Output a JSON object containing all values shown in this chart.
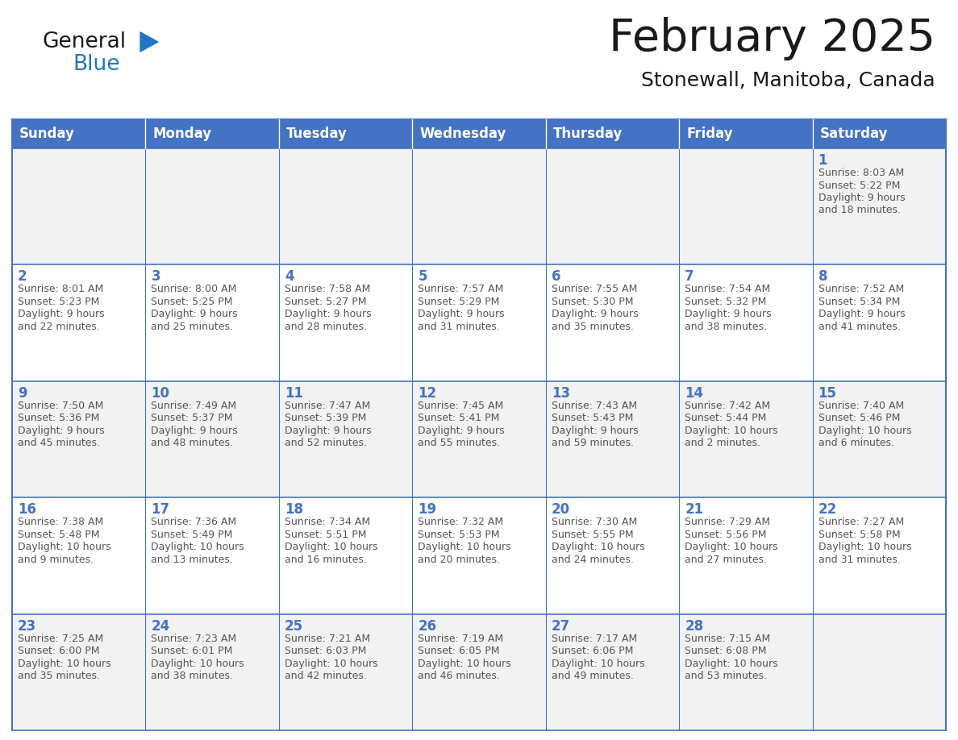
{
  "title": "February 2025",
  "subtitle": "Stonewall, Manitoba, Canada",
  "header_bg": "#4472C4",
  "header_text_color": "#FFFFFF",
  "cell_bg_light": "#F2F2F2",
  "cell_bg_white": "#FFFFFF",
  "border_color": "#4472C4",
  "text_color": "#555555",
  "day_number_color": "#4472C4",
  "day_headers": [
    "Sunday",
    "Monday",
    "Tuesday",
    "Wednesday",
    "Thursday",
    "Friday",
    "Saturday"
  ],
  "weeks": [
    [
      {
        "day": "",
        "info": ""
      },
      {
        "day": "",
        "info": ""
      },
      {
        "day": "",
        "info": ""
      },
      {
        "day": "",
        "info": ""
      },
      {
        "day": "",
        "info": ""
      },
      {
        "day": "",
        "info": ""
      },
      {
        "day": "1",
        "info": "Sunrise: 8:03 AM\nSunset: 5:22 PM\nDaylight: 9 hours\nand 18 minutes."
      }
    ],
    [
      {
        "day": "2",
        "info": "Sunrise: 8:01 AM\nSunset: 5:23 PM\nDaylight: 9 hours\nand 22 minutes."
      },
      {
        "day": "3",
        "info": "Sunrise: 8:00 AM\nSunset: 5:25 PM\nDaylight: 9 hours\nand 25 minutes."
      },
      {
        "day": "4",
        "info": "Sunrise: 7:58 AM\nSunset: 5:27 PM\nDaylight: 9 hours\nand 28 minutes."
      },
      {
        "day": "5",
        "info": "Sunrise: 7:57 AM\nSunset: 5:29 PM\nDaylight: 9 hours\nand 31 minutes."
      },
      {
        "day": "6",
        "info": "Sunrise: 7:55 AM\nSunset: 5:30 PM\nDaylight: 9 hours\nand 35 minutes."
      },
      {
        "day": "7",
        "info": "Sunrise: 7:54 AM\nSunset: 5:32 PM\nDaylight: 9 hours\nand 38 minutes."
      },
      {
        "day": "8",
        "info": "Sunrise: 7:52 AM\nSunset: 5:34 PM\nDaylight: 9 hours\nand 41 minutes."
      }
    ],
    [
      {
        "day": "9",
        "info": "Sunrise: 7:50 AM\nSunset: 5:36 PM\nDaylight: 9 hours\nand 45 minutes."
      },
      {
        "day": "10",
        "info": "Sunrise: 7:49 AM\nSunset: 5:37 PM\nDaylight: 9 hours\nand 48 minutes."
      },
      {
        "day": "11",
        "info": "Sunrise: 7:47 AM\nSunset: 5:39 PM\nDaylight: 9 hours\nand 52 minutes."
      },
      {
        "day": "12",
        "info": "Sunrise: 7:45 AM\nSunset: 5:41 PM\nDaylight: 9 hours\nand 55 minutes."
      },
      {
        "day": "13",
        "info": "Sunrise: 7:43 AM\nSunset: 5:43 PM\nDaylight: 9 hours\nand 59 minutes."
      },
      {
        "day": "14",
        "info": "Sunrise: 7:42 AM\nSunset: 5:44 PM\nDaylight: 10 hours\nand 2 minutes."
      },
      {
        "day": "15",
        "info": "Sunrise: 7:40 AM\nSunset: 5:46 PM\nDaylight: 10 hours\nand 6 minutes."
      }
    ],
    [
      {
        "day": "16",
        "info": "Sunrise: 7:38 AM\nSunset: 5:48 PM\nDaylight: 10 hours\nand 9 minutes."
      },
      {
        "day": "17",
        "info": "Sunrise: 7:36 AM\nSunset: 5:49 PM\nDaylight: 10 hours\nand 13 minutes."
      },
      {
        "day": "18",
        "info": "Sunrise: 7:34 AM\nSunset: 5:51 PM\nDaylight: 10 hours\nand 16 minutes."
      },
      {
        "day": "19",
        "info": "Sunrise: 7:32 AM\nSunset: 5:53 PM\nDaylight: 10 hours\nand 20 minutes."
      },
      {
        "day": "20",
        "info": "Sunrise: 7:30 AM\nSunset: 5:55 PM\nDaylight: 10 hours\nand 24 minutes."
      },
      {
        "day": "21",
        "info": "Sunrise: 7:29 AM\nSunset: 5:56 PM\nDaylight: 10 hours\nand 27 minutes."
      },
      {
        "day": "22",
        "info": "Sunrise: 7:27 AM\nSunset: 5:58 PM\nDaylight: 10 hours\nand 31 minutes."
      }
    ],
    [
      {
        "day": "23",
        "info": "Sunrise: 7:25 AM\nSunset: 6:00 PM\nDaylight: 10 hours\nand 35 minutes."
      },
      {
        "day": "24",
        "info": "Sunrise: 7:23 AM\nSunset: 6:01 PM\nDaylight: 10 hours\nand 38 minutes."
      },
      {
        "day": "25",
        "info": "Sunrise: 7:21 AM\nSunset: 6:03 PM\nDaylight: 10 hours\nand 42 minutes."
      },
      {
        "day": "26",
        "info": "Sunrise: 7:19 AM\nSunset: 6:05 PM\nDaylight: 10 hours\nand 46 minutes."
      },
      {
        "day": "27",
        "info": "Sunrise: 7:17 AM\nSunset: 6:06 PM\nDaylight: 10 hours\nand 49 minutes."
      },
      {
        "day": "28",
        "info": "Sunrise: 7:15 AM\nSunset: 6:08 PM\nDaylight: 10 hours\nand 53 minutes."
      },
      {
        "day": "",
        "info": ""
      }
    ]
  ]
}
